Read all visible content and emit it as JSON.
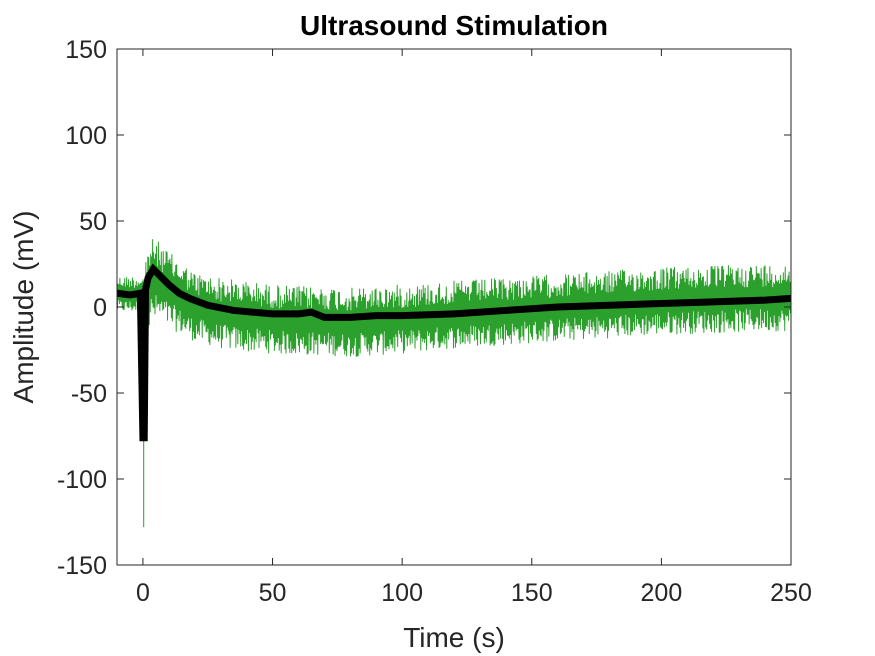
{
  "chart_data": {
    "type": "line",
    "title": "Ultrasound Stimulation",
    "xlabel": "Time (s)",
    "ylabel": "Amplitude (mV)",
    "xlim": [
      -10,
      250
    ],
    "ylim": [
      -150,
      150
    ],
    "xticks": [
      0,
      50,
      100,
      150,
      200,
      250
    ],
    "xtick_labels": [
      "0",
      "50",
      "100",
      "150",
      "200",
      "250"
    ],
    "yticks": [
      -150,
      -100,
      -50,
      0,
      50,
      100,
      150
    ],
    "ytick_labels": [
      "-150",
      "-100",
      "-50",
      "0",
      "50",
      "100",
      "150"
    ],
    "grid": false,
    "legend": "none",
    "box": true,
    "series": [
      {
        "style": "raw-noisy-trace",
        "color": "#2ca02c",
        "x": [
          -10,
          -5,
          -1,
          0,
          0.3,
          1,
          3,
          6,
          10,
          15,
          20,
          30,
          40,
          50,
          60,
          70,
          80,
          90,
          100,
          120,
          140,
          160,
          180,
          200,
          220,
          240,
          250
        ],
        "upper": [
          18,
          18,
          18,
          22,
          10,
          30,
          40,
          38,
          32,
          26,
          20,
          17,
          15,
          13,
          12,
          12,
          11,
          12,
          13,
          15,
          17,
          19,
          21,
          23,
          24,
          25,
          25
        ],
        "lower": [
          -3,
          -3,
          -3,
          -5,
          -128,
          -25,
          -10,
          -8,
          -12,
          -16,
          -20,
          -24,
          -26,
          -27,
          -28,
          -28,
          -29,
          -28,
          -27,
          -24,
          -22,
          -20,
          -18,
          -16,
          -15,
          -14,
          -14
        ]
      },
      {
        "style": "smoothed-trace",
        "color": "#000000",
        "x": [
          -10,
          -5,
          -1,
          0,
          0.5,
          1,
          2,
          4,
          6,
          8,
          10,
          14,
          18,
          25,
          35,
          50,
          60,
          65,
          70,
          75,
          80,
          90,
          100,
          120,
          140,
          160,
          180,
          200,
          220,
          240,
          250
        ],
        "y": [
          8,
          7,
          8,
          -76,
          -76,
          10,
          17,
          22,
          19,
          16,
          13,
          8,
          5,
          1,
          -2,
          -4,
          -4,
          -3,
          -6,
          -6,
          -6,
          -5,
          -5,
          -4,
          -2,
          0,
          1,
          2,
          3,
          4,
          5
        ]
      }
    ]
  }
}
